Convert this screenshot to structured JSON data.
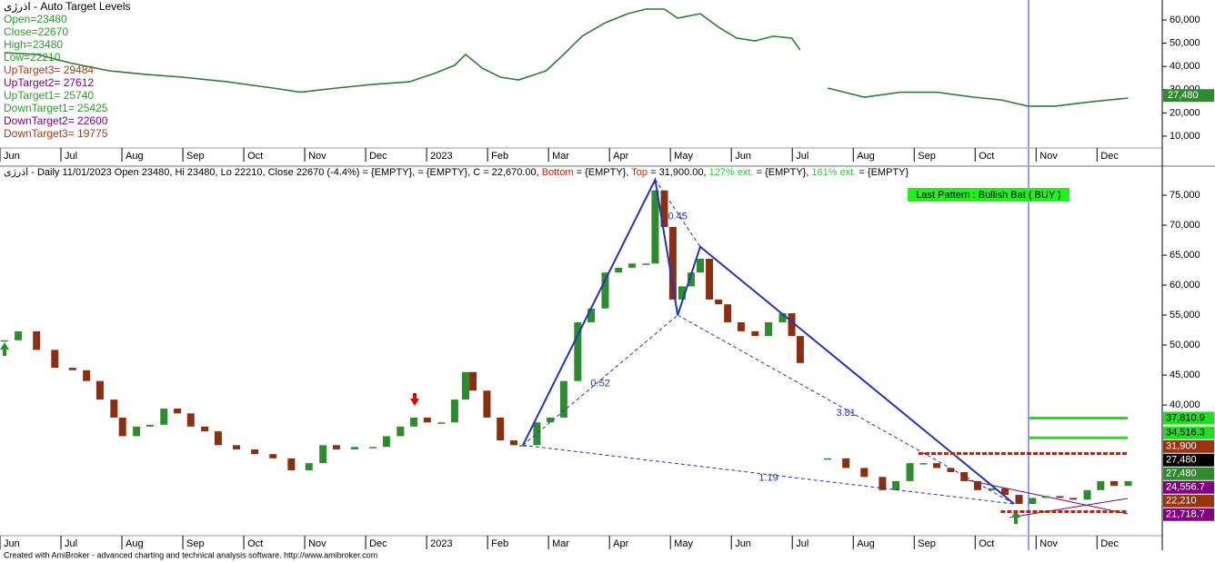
{
  "chart_data": [
    {
      "type": "line",
      "title": "اذرژی - Auto Target Levels",
      "legend_lines": [
        {
          "text": "Open=23480",
          "color": "#2e9b2e"
        },
        {
          "text": "Close=22670",
          "color": "#2e9b2e"
        },
        {
          "text": "High=23480",
          "color": "#2e9b2e"
        },
        {
          "text": "Low=22210",
          "color": "#2e9b2e"
        },
        {
          "text": "UpTarget3= 29484",
          "color": "#a0401a"
        },
        {
          "text": "UpTarget2= 27612",
          "color": "#800080"
        },
        {
          "text": "UpTarget1= 25740",
          "color": "#2e9b2e"
        },
        {
          "text": "DownTarget1= 25425",
          "color": "#2e9b2e"
        },
        {
          "text": "DownTarget2= 22600",
          "color": "#800080"
        },
        {
          "text": "DownTarget3= 19775",
          "color": "#a0401a"
        }
      ],
      "x": [
        0.07,
        0.6,
        1.19,
        1.79,
        2.39,
        2.99,
        3.73,
        4.48,
        4.93,
        5.52,
        6.12,
        6.72,
        7.16,
        7.46,
        7.64,
        7.91,
        8.21,
        8.51,
        8.96,
        9.25,
        9.55,
        9.93,
        10.3,
        10.6,
        10.9,
        11.12,
        11.49,
        11.79,
        12.09,
        12.39,
        12.69,
        12.99,
        13.13,
        13.35,
        13.58,
        14.18,
        14.78,
        15.37,
        15.97,
        16.42,
        16.87,
        17.31,
        17.91,
        18.51
      ],
      "values": [
        45900,
        45200,
        41300,
        38100,
        36600,
        35400,
        33400,
        30700,
        28900,
        30700,
        32300,
        33400,
        37300,
        40500,
        45200,
        39300,
        35400,
        34200,
        38100,
        45200,
        53000,
        58800,
        62700,
        64700,
        64700,
        60800,
        62700,
        56900,
        52200,
        51000,
        53000,
        52200,
        47100,
        null,
        30700,
        26800,
        28900,
        28900,
        26800,
        25600,
        22900,
        22900,
        24800,
        26400
      ],
      "color": "#2e7d32",
      "xlim": [
        0,
        19.07
      ],
      "ylim": [
        4900,
        68600
      ],
      "yticks": [
        {
          "value": 10000,
          "label": "10,000"
        },
        {
          "value": 20000,
          "label": "20,000"
        },
        {
          "value": 30000,
          "label": "30,000"
        },
        {
          "value": 40000,
          "label": "40,000"
        },
        {
          "value": 50000,
          "label": "50,000"
        },
        {
          "value": 60000,
          "label": "60,000"
        }
      ],
      "xticks": [
        {
          "value": 0,
          "label": "Jun"
        },
        {
          "value": 1,
          "label": "Jul"
        },
        {
          "value": 2,
          "label": "Aug"
        },
        {
          "value": 3,
          "label": "Sep"
        },
        {
          "value": 4,
          "label": "Oct"
        },
        {
          "value": 5,
          "label": "Nov"
        },
        {
          "value": 6,
          "label": "Dec"
        },
        {
          "value": 7,
          "label": "2023"
        },
        {
          "value": 8,
          "label": "Feb"
        },
        {
          "value": 9,
          "label": "Mar"
        },
        {
          "value": 10,
          "label": "Apr"
        },
        {
          "value": 11,
          "label": "May"
        },
        {
          "value": 12,
          "label": "Jun"
        },
        {
          "value": 13,
          "label": "Jul"
        },
        {
          "value": 14,
          "label": "Aug"
        },
        {
          "value": 15,
          "label": "Sep"
        },
        {
          "value": 16,
          "label": "Oct"
        },
        {
          "value": 17,
          "label": "Nov"
        },
        {
          "value": 18,
          "label": "Dec"
        }
      ],
      "last_label": {
        "value": 27480,
        "label": "27,480",
        "color": "#2e8b2e"
      }
    },
    {
      "type": "candles",
      "header": [
        {
          "text": "اذرژی - Daily 11/01/2023 Open 23480, Hi 23480, Lo 22210, Close 22670 (-4.4%)  = {EMPTY},  = {EMPTY}, C = 22,670.00, ",
          "color": "#000000"
        },
        {
          "text": "Bottom",
          "color": "#d02000"
        },
        {
          "text": " = {EMPTY}, ",
          "color": "#000000"
        },
        {
          "text": "Top",
          "color": "#d02000"
        },
        {
          "text": " = 31,900.00, ",
          "color": "#000000"
        },
        {
          "text": "127% ext.",
          "color": "#2ecc2e"
        },
        {
          "text": " = {EMPTY}, ",
          "color": "#000000"
        },
        {
          "text": "161% ext.",
          "color": "#2ecc2e"
        },
        {
          "text": " = {EMPTY}",
          "color": "#000000"
        }
      ],
      "x": [
        0.07,
        0.3,
        0.6,
        0.9,
        1.19,
        1.42,
        1.64,
        1.87,
        2.01,
        2.24,
        2.46,
        2.69,
        2.91,
        3.13,
        3.36,
        3.58,
        3.88,
        4.18,
        4.48,
        4.78,
        5.07,
        5.3,
        5.52,
        5.82,
        6.12,
        6.34,
        6.57,
        6.79,
        7.01,
        7.24,
        7.46,
        7.64,
        7.76,
        7.99,
        8.21,
        8.43,
        8.58,
        8.81,
        9.03,
        9.25,
        9.48,
        9.7,
        9.93,
        10.15,
        10.37,
        10.6,
        10.75,
        10.9,
        11.04,
        11.19,
        11.34,
        11.49,
        11.64,
        11.79,
        11.94,
        12.16,
        12.39,
        12.61,
        12.84,
        12.99,
        13.13,
        13.35,
        13.58,
        13.88,
        14.18,
        14.48,
        14.7,
        14.93,
        15.15,
        15.37,
        15.6,
        15.82,
        16.04,
        16.27,
        16.49,
        16.72,
        16.94,
        17.16,
        17.39,
        17.61,
        17.84,
        18.06,
        18.28,
        18.51
      ],
      "values": [
        50800,
        52300,
        49200,
        46200,
        45800,
        44000,
        40900,
        37900,
        34800,
        36400,
        36700,
        39400,
        38600,
        36400,
        35600,
        33300,
        32600,
        31800,
        31100,
        29100,
        30300,
        33300,
        32600,
        33000,
        33000,
        34800,
        36400,
        37900,
        37100,
        37100,
        40900,
        45500,
        42400,
        37900,
        34100,
        33300,
        33300,
        37100,
        37900,
        44000,
        53800,
        56100,
        62100,
        62900,
        63600,
        63600,
        75800,
        69700,
        57600,
        59800,
        62100,
        64400,
        57600,
        56800,
        53800,
        52300,
        51500,
        53800,
        55300,
        51500,
        47000,
        null,
        31100,
        29500,
        28000,
        25800,
        27300,
        30300,
        30300,
        29500,
        28800,
        27300,
        25800,
        26100,
        25000,
        23500,
        24500,
        24800,
        24500,
        24200,
        25800,
        27300,
        26500,
        27300
      ],
      "up_color": "#2e8b2e",
      "down_color": "#8b2f12",
      "xlim": [
        0,
        19.07
      ],
      "ylim": [
        18200,
        79850
      ],
      "yticks": [
        {
          "value": 40000,
          "label": "40,000"
        },
        {
          "value": 45000,
          "label": "45,000"
        },
        {
          "value": 50000,
          "label": "50,000"
        },
        {
          "value": 55000,
          "label": "55,000"
        },
        {
          "value": 60000,
          "label": "60,000"
        },
        {
          "value": 65000,
          "label": "65,000"
        },
        {
          "value": 70000,
          "label": "70,000"
        },
        {
          "value": 75000,
          "label": "75,000"
        }
      ],
      "xticks": [
        {
          "value": 0,
          "label": "Jun"
        },
        {
          "value": 1,
          "label": "Jul"
        },
        {
          "value": 2,
          "label": "Aug"
        },
        {
          "value": 3,
          "label": "Sep"
        },
        {
          "value": 4,
          "label": "Oct"
        },
        {
          "value": 5,
          "label": "Nov"
        },
        {
          "value": 6,
          "label": "Dec"
        },
        {
          "value": 7,
          "label": "2023"
        },
        {
          "value": 8,
          "label": "Feb"
        },
        {
          "value": 9,
          "label": "Mar"
        },
        {
          "value": 10,
          "label": "Apr"
        },
        {
          "value": 11,
          "label": "May"
        },
        {
          "value": 12,
          "label": "Jun"
        },
        {
          "value": 13,
          "label": "Jul"
        },
        {
          "value": 14,
          "label": "Aug"
        },
        {
          "value": 15,
          "label": "Sep"
        },
        {
          "value": 16,
          "label": "Oct"
        },
        {
          "value": 17,
          "label": "Nov"
        },
        {
          "value": 18,
          "label": "Dec"
        }
      ],
      "levels": [
        {
          "value": 37810.9,
          "label": "37,810.9",
          "color": "#22dd22",
          "text_color": "#000000",
          "start": 16.88
        },
        {
          "value": 34516.3,
          "label": "34,516.3",
          "color": "#22dd22",
          "text_color": "#000000",
          "start": 16.88
        },
        {
          "value": 31900,
          "label": "31,900",
          "color": "#993311",
          "text_color": "#ffffff",
          "start": 15.07,
          "dashed": true
        },
        {
          "value": 27480,
          "label": "27,480",
          "color": "#000000",
          "text_color": "#ffffff"
        },
        {
          "value": 27480,
          "label": "27,480",
          "color": "#2e8b2e",
          "text_color": "#ffffff"
        },
        {
          "value": 24556.7,
          "label": "24,556.7",
          "color": "#800080",
          "text_color": "#ffffff"
        },
        {
          "value": 22210,
          "label": "22,210",
          "color": "#993311",
          "text_color": "#ffffff",
          "start": 16.42,
          "dashed": true
        },
        {
          "value": 21718.7,
          "label": "21,718.7",
          "color": "#800080",
          "text_color": "#ffffff"
        }
      ],
      "pattern": {
        "x": [
          8.58,
          10.75,
          11.12,
          11.49,
          16.64
        ],
        "values": [
          33300,
          77600,
          55000,
          66400,
          23500
        ],
        "color": "#2233bb",
        "ratios": [
          0.45,
          0.52,
          3.81,
          1.19
        ]
      },
      "signal": "Last Pattern : Bullish Bat ( BUY )"
    }
  ],
  "footer": "Created with AmiBroker - advanced charting and technical analysis software. http://www.amibroker.com"
}
